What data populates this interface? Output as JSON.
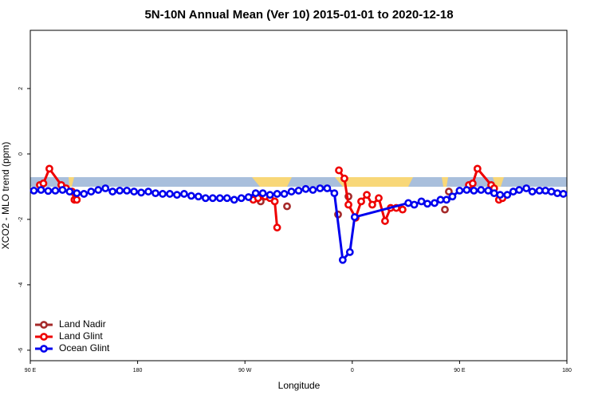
{
  "chart_data": {
    "type": "line",
    "title": "5N-10N Annual Mean (Ver 10)   2015-01-01 to 2020-12-18",
    "x_label": "Longitude",
    "y_label": "XCO2 - MLO trend (ppm)",
    "xlim": [
      90,
      540
    ],
    "xticks": [
      {
        "value": 90,
        "label": "90 E"
      },
      180,
      {
        "value": 270,
        "label": "90 W"
      },
      {
        "value": 360,
        "label": "0"
      },
      {
        "value": 450,
        "label": "90 E"
      },
      {
        "value": 540,
        "label": "180"
      }
    ],
    "ylim": [
      -6.32,
      3.78
    ],
    "yticks": [
      2,
      0,
      -2,
      -4,
      -6
    ],
    "legend": "bottom-left",
    "series": [
      {
        "name": "Land Nadir",
        "color": "#a52a2a",
        "x": [
          99.4,
          null,
          278.6,
          null,
          283.2,
          null,
          305.3,
          null,
          348.1,
          null,
          356.8,
          null,
          437.7,
          null,
          441
        ],
        "values": [
          -0.95,
          null,
          -1.3,
          null,
          -1.45,
          null,
          -1.6,
          null,
          -1.85,
          null,
          -1.3,
          null,
          -1.7,
          null,
          -1.15
        ]
      },
      {
        "name": "Land Glint",
        "color": "#ee0000",
        "x": [
          98,
          101,
          106,
          116,
          120,
          125,
          127,
          129,
          null,
          277,
          281,
          287,
          291,
          295,
          297,
          null,
          348.8,
          353.4,
          356.8,
          362.8,
          367.5,
          372.2,
          376.8,
          382.2,
          387.5,
          392.2,
          396.9,
          402.2,
          null,
          457.8,
          461,
          465,
          476.5,
          479,
          483,
          486
        ],
        "values": [
          -0.95,
          -0.9,
          -0.45,
          -0.95,
          -1.05,
          -1.15,
          -1.4,
          -1.4,
          null,
          -1.4,
          -1.35,
          -1.3,
          -1.35,
          -1.45,
          -2.25,
          null,
          -0.5,
          -0.75,
          -1.55,
          -1.95,
          -1.45,
          -1.25,
          -1.55,
          -1.35,
          -2.05,
          -1.65,
          -1.65,
          -1.7,
          null,
          -0.95,
          -0.9,
          -0.45,
          -0.95,
          -1.05,
          -1.4,
          -1.35
        ]
      },
      {
        "name": "Ocean Glint",
        "color": "#0000ee",
        "x": [
          93,
          99,
          105,
          111,
          117,
          123,
          129,
          135,
          141,
          147,
          153,
          159,
          165,
          171,
          177,
          183,
          189,
          195,
          201,
          207,
          213,
          219,
          225,
          231,
          237,
          243,
          249,
          255,
          261,
          267,
          273,
          279,
          285,
          291,
          297,
          303,
          309,
          315,
          321,
          327,
          333,
          339,
          345,
          352,
          358,
          362,
          407,
          412,
          418,
          423,
          429,
          434,
          439,
          444,
          450,
          456,
          462,
          468,
          474,
          479,
          484,
          490,
          495,
          500,
          506,
          511,
          517,
          522,
          527,
          532,
          537
        ],
        "values": [
          -1.12,
          -1.1,
          -1.13,
          -1.12,
          -1.1,
          -1.15,
          -1.2,
          -1.22,
          -1.15,
          -1.1,
          -1.05,
          -1.15,
          -1.12,
          -1.12,
          -1.15,
          -1.18,
          -1.15,
          -1.2,
          -1.22,
          -1.22,
          -1.25,
          -1.22,
          -1.28,
          -1.3,
          -1.35,
          -1.35,
          -1.35,
          -1.35,
          -1.4,
          -1.35,
          -1.32,
          -1.2,
          -1.2,
          -1.25,
          -1.22,
          -1.22,
          -1.15,
          -1.12,
          -1.07,
          -1.1,
          -1.05,
          -1.05,
          -1.2,
          -3.24,
          -3.0,
          -1.93,
          -1.5,
          -1.55,
          -1.45,
          -1.52,
          -1.5,
          -1.4,
          -1.4,
          -1.3,
          -1.12,
          -1.1,
          -1.12,
          -1.1,
          -1.12,
          -1.2,
          -1.25,
          -1.25,
          -1.15,
          -1.1,
          -1.05,
          -1.15,
          -1.12,
          -1.12,
          -1.15,
          -1.2,
          -1.22
        ]
      }
    ]
  }
}
